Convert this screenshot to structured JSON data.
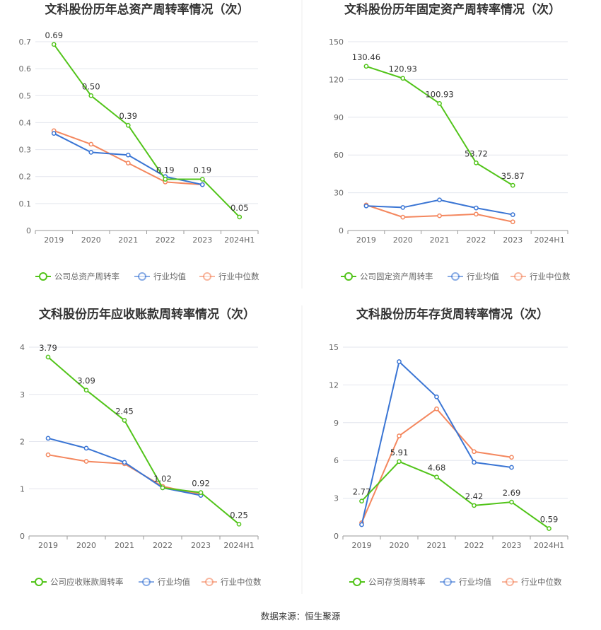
{
  "source_label": "数据来源：恒生聚源",
  "colors": {
    "company": "#52c41a",
    "avg": "#3a75d4",
    "median": "#f4875e"
  },
  "chart_data": [
    {
      "type": "line",
      "title": "文科股份历年总资产周转率情况（次）",
      "categories": [
        "2019",
        "2020",
        "2021",
        "2022",
        "2023",
        "2024H1"
      ],
      "ylim": [
        0,
        0.7
      ],
      "yticks": [
        0,
        0.1,
        0.2,
        0.3,
        0.4,
        0.5,
        0.6,
        0.7
      ],
      "series": [
        {
          "name": "公司总资产周转率",
          "key": "company",
          "values": [
            0.69,
            0.5,
            0.39,
            0.19,
            0.19,
            0.05
          ],
          "labels": [
            "0.69",
            "0.50",
            "0.39",
            "0.19",
            "0.19",
            "0.05"
          ]
        },
        {
          "name": "行业均值",
          "key": "avg",
          "values": [
            0.36,
            0.29,
            0.28,
            0.2,
            0.17,
            null
          ]
        },
        {
          "name": "行业中位数",
          "key": "median",
          "values": [
            0.37,
            0.32,
            0.25,
            0.18,
            0.17,
            null
          ]
        }
      ]
    },
    {
      "type": "line",
      "title": "文科股份历年固定资产周转率情况（次）",
      "categories": [
        "2019",
        "2020",
        "2021",
        "2022",
        "2023",
        "2024H1"
      ],
      "ylim": [
        0,
        150
      ],
      "yticks": [
        0,
        30,
        60,
        90,
        120,
        150
      ],
      "series": [
        {
          "name": "公司固定资产周转率",
          "key": "company",
          "values": [
            130.46,
            120.93,
            100.93,
            53.72,
            35.87,
            null
          ],
          "labels": [
            "130.46",
            "120.93",
            "100.93",
            "53.72",
            "35.87",
            ""
          ]
        },
        {
          "name": "行业均值",
          "key": "avg",
          "values": [
            19.5,
            18.3,
            24.3,
            17.9,
            12.6,
            null
          ]
        },
        {
          "name": "行业中位数",
          "key": "median",
          "values": [
            20.3,
            10.6,
            11.7,
            13.0,
            6.9,
            null
          ]
        }
      ]
    },
    {
      "type": "line",
      "title": "文科股份历年应收账款周转率情况（次）",
      "categories": [
        "2019",
        "2020",
        "2021",
        "2022",
        "2023",
        "2024H1"
      ],
      "ylim": [
        0,
        4
      ],
      "yticks": [
        0,
        1,
        2,
        3,
        4
      ],
      "series": [
        {
          "name": "公司应收账款周转率",
          "key": "company",
          "values": [
            3.79,
            3.09,
            2.45,
            1.02,
            0.92,
            0.25
          ],
          "labels": [
            "3.79",
            "3.09",
            "2.45",
            "1.02",
            "0.92",
            "0.25"
          ]
        },
        {
          "name": "行业均值",
          "key": "avg",
          "values": [
            2.07,
            1.86,
            1.56,
            1.02,
            0.86,
            null
          ]
        },
        {
          "name": "行业中位数",
          "key": "median",
          "values": [
            1.72,
            1.58,
            1.53,
            1.05,
            0.88,
            null
          ]
        }
      ]
    },
    {
      "type": "line",
      "title": "文科股份历年存货周转率情况（次）",
      "categories": [
        "2019",
        "2020",
        "2021",
        "2022",
        "2023",
        "2024H1"
      ],
      "ylim": [
        0,
        15
      ],
      "yticks": [
        0,
        3,
        6,
        9,
        12,
        15
      ],
      "series": [
        {
          "name": "公司存货周转率",
          "key": "company",
          "values": [
            2.77,
            5.91,
            4.68,
            2.42,
            2.69,
            0.59
          ],
          "labels": [
            "2.77",
            "5.91",
            "4.68",
            "2.42",
            "2.69",
            "0.59"
          ]
        },
        {
          "name": "行业均值",
          "key": "avg",
          "values": [
            0.9,
            13.85,
            11.05,
            5.85,
            5.45,
            null
          ]
        },
        {
          "name": "行业中位数",
          "key": "median",
          "values": [
            1.05,
            7.95,
            10.1,
            6.7,
            6.25,
            null
          ]
        }
      ]
    }
  ]
}
